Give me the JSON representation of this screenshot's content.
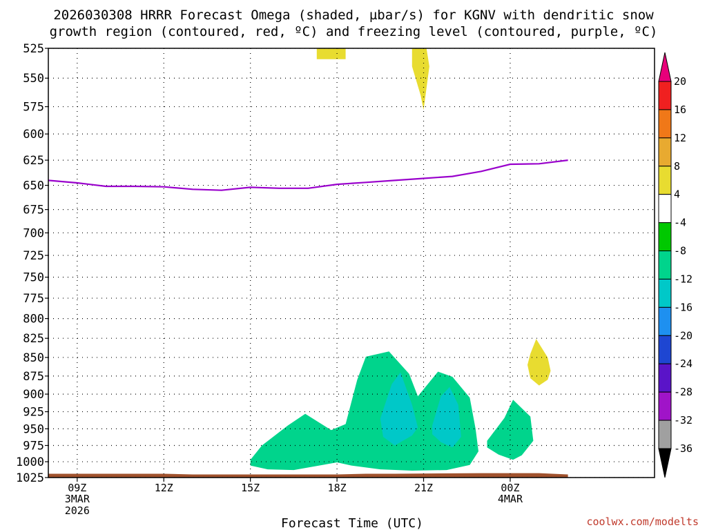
{
  "chart_data": {
    "type": "heatmap",
    "title_line1": "2026030308 HRRR Forecast Omega (shaded, µbar/s) for KGNV with dendritic snow",
    "title_line2": "growth region (contoured, red, ºC) and freezing level (contoured, purple, ºC)",
    "xlabel": "Forecast Time (UTC)",
    "ylabel": "",
    "credit": "coolwx.com/modelts",
    "x_unit": "hours since 2026-03-03 08Z",
    "xlim": [
      0,
      21
    ],
    "y_unit": "hPa",
    "ylim": [
      1025,
      525
    ],
    "y_ticks": [
      "525",
      "550",
      "575",
      "600",
      "625",
      "650",
      "675",
      "700",
      "725",
      "750",
      "775",
      "800",
      "825",
      "850",
      "875",
      "900",
      "925",
      "950",
      "975",
      "1000",
      "1025"
    ],
    "x_ticks": [
      {
        "hour": 1,
        "line1": "09Z",
        "line2": "3MAR",
        "line3": "2026"
      },
      {
        "hour": 4,
        "line1": "12Z",
        "line2": "",
        "line3": ""
      },
      {
        "hour": 7,
        "line1": "15Z",
        "line2": "",
        "line3": ""
      },
      {
        "hour": 10,
        "line1": "18Z",
        "line2": "",
        "line3": ""
      },
      {
        "hour": 13,
        "line1": "21Z",
        "line2": "",
        "line3": ""
      },
      {
        "hour": 16,
        "line1": "00Z",
        "line2": "4MAR",
        "line3": ""
      }
    ],
    "colorbar": {
      "labels": [
        "20",
        "16",
        "12",
        "8",
        "4",
        "-4",
        "-8",
        "-12",
        "-16",
        "-20",
        "-24",
        "-28",
        "-32",
        "-36"
      ],
      "colors": [
        "#e8007a",
        "#f02020",
        "#f07818",
        "#e8aa30",
        "#e8dc30",
        "#ffffff",
        "#00c800",
        "#00d48c",
        "#00c8c8",
        "#1e90f0",
        "#1e46d2",
        "#5a14c8",
        "#a014c8",
        "#a0a0a0",
        "#000000"
      ]
    },
    "series": [
      {
        "name": "Freezing level",
        "color": "#9900cc",
        "points": [
          [
            0,
            645
          ],
          [
            1,
            647.5
          ],
          [
            2,
            651
          ],
          [
            3,
            651
          ],
          [
            4,
            651.5
          ],
          [
            5,
            654
          ],
          [
            6,
            655
          ],
          [
            7,
            652
          ],
          [
            8,
            653
          ],
          [
            9,
            653
          ],
          [
            10,
            649
          ],
          [
            11,
            647
          ],
          [
            12,
            645
          ],
          [
            13,
            643
          ],
          [
            14,
            641
          ],
          [
            15,
            636
          ],
          [
            16,
            629
          ],
          [
            17,
            628.5
          ],
          [
            18,
            625
          ]
        ]
      }
    ],
    "omega_regions": [
      {
        "name": "updraft-region-1",
        "class": "-8",
        "points": [
          [
            7,
            997
          ],
          [
            7.4,
            975
          ],
          [
            8.3,
            945
          ],
          [
            8.9,
            928
          ],
          [
            9.8,
            952
          ],
          [
            10.3,
            943
          ],
          [
            10.7,
            880
          ],
          [
            11,
            849
          ],
          [
            11.8,
            842
          ],
          [
            12.5,
            872
          ],
          [
            12.8,
            903
          ],
          [
            13.5,
            869
          ],
          [
            14,
            876
          ],
          [
            14.6,
            905
          ],
          [
            14.8,
            950
          ],
          [
            14.9,
            984
          ],
          [
            14.6,
            1005
          ],
          [
            13.8,
            1013
          ],
          [
            12.6,
            1014
          ],
          [
            11.5,
            1012
          ],
          [
            10.5,
            1006
          ],
          [
            10,
            1001
          ],
          [
            9.5,
            1005
          ],
          [
            8.5,
            1013
          ],
          [
            7.6,
            1012
          ],
          [
            7,
            1006
          ]
        ]
      },
      {
        "name": "updraft-region-2",
        "class": "-8",
        "points": [
          [
            15.2,
            968
          ],
          [
            15.8,
            934
          ],
          [
            16.1,
            908
          ],
          [
            16.7,
            932
          ],
          [
            16.8,
            968
          ],
          [
            16.4,
            990
          ],
          [
            16.1,
            997
          ],
          [
            15.6,
            989
          ],
          [
            15.2,
            978
          ]
        ]
      },
      {
        "name": "updraft-core-1",
        "class": "-12",
        "points": [
          [
            11.5,
            935
          ],
          [
            11.9,
            886
          ],
          [
            12.2,
            870
          ],
          [
            12.6,
            915
          ],
          [
            12.8,
            948
          ],
          [
            12.6,
            960
          ],
          [
            12,
            975
          ],
          [
            11.6,
            962
          ]
        ]
      },
      {
        "name": "updraft-core-2",
        "class": "-12",
        "points": [
          [
            13.3,
            945
          ],
          [
            13.6,
            903
          ],
          [
            13.9,
            890
          ],
          [
            14.2,
            915
          ],
          [
            14.3,
            962
          ],
          [
            14,
            978
          ],
          [
            13.6,
            970
          ],
          [
            13.3,
            958
          ]
        ]
      },
      {
        "name": "downdraft-region-1",
        "class": "4",
        "points": [
          [
            9.3,
            525
          ],
          [
            10.3,
            525
          ],
          [
            10.3,
            534
          ],
          [
            9.3,
            534
          ]
        ]
      },
      {
        "name": "downdraft-region-2",
        "class": "4",
        "points": [
          [
            12.6,
            525
          ],
          [
            13.1,
            525
          ],
          [
            13.2,
            540
          ],
          [
            13.0,
            578
          ],
          [
            12.9,
            565
          ],
          [
            12.6,
            540
          ]
        ]
      },
      {
        "name": "downdraft-region-3",
        "class": "4",
        "points": [
          [
            16.7,
            845
          ],
          [
            16.9,
            826
          ],
          [
            17.3,
            850
          ],
          [
            17.4,
            868
          ],
          [
            17.3,
            880
          ],
          [
            17,
            888
          ],
          [
            16.7,
            878
          ],
          [
            16.6,
            860
          ]
        ]
      }
    ],
    "terrain": {
      "color": "#a0522d",
      "points": [
        [
          0,
          1019
        ],
        [
          4,
          1019
        ],
        [
          5,
          1020
        ],
        [
          7,
          1020
        ],
        [
          10,
          1020
        ],
        [
          11,
          1019
        ],
        [
          12,
          1019
        ],
        [
          15,
          1018
        ],
        [
          16,
          1018
        ],
        [
          17,
          1018
        ],
        [
          18,
          1020
        ]
      ]
    }
  }
}
